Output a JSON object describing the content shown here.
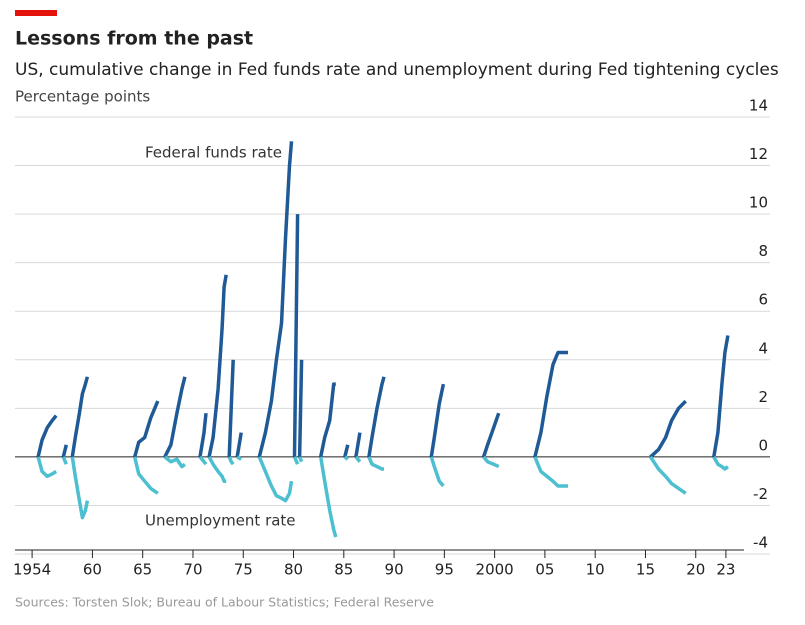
{
  "chart_data": {
    "type": "line",
    "title": "Lessons from the past",
    "subtitle": "US, cumulative change in Fed funds rate and unemployment during Fed tightening cycles",
    "y_label": "Percentage points",
    "source": "Sources: Torsten Slok; Bureau of Labour Statistics; Federal Reserve",
    "annotations": [
      "Federal funds rate",
      "Unemployment rate"
    ],
    "x": [
      1954.6,
      1955.0,
      1955.5,
      1956.0,
      1956.4,
      null,
      1957.1,
      1957.4,
      null,
      1958.0,
      1958.3,
      1958.7,
      1959.0,
      1959.3,
      1959.5,
      null,
      1964.2,
      1964.6,
      1965.2,
      1965.8,
      1966.5,
      null,
      1967.2,
      1967.8,
      1968.4,
      1968.9,
      1969.2,
      null,
      1970.7,
      1971.1,
      1971.3,
      null,
      1971.6,
      1972.0,
      1972.5,
      1972.9,
      1973.1,
      1973.3,
      null,
      1973.6,
      1973.8,
      1974.0,
      null,
      1974.4,
      1974.8,
      null,
      1976.6,
      1977.2,
      1977.8,
      1978.3,
      1978.8,
      1979.2,
      1979.6,
      1979.8,
      null,
      1980.1,
      1980.4,
      null,
      1980.6,
      1980.8,
      null,
      1982.7,
      1983.1,
      1983.6,
      1984.0,
      1984.2,
      null,
      1985.1,
      1985.4,
      null,
      1986.2,
      1986.6,
      null,
      1987.5,
      1987.8,
      1988.3,
      1988.8,
      1989.0,
      null,
      1993.7,
      1994.0,
      1994.5,
      1994.9,
      null,
      1998.9,
      1999.3,
      1999.9,
      2000.4,
      null,
      2004.0,
      2004.6,
      2005.2,
      2005.8,
      2006.3,
      2007.3,
      null,
      2015.5,
      2016.3,
      2017.0,
      2017.6,
      2018.3,
      2019.0,
      null,
      2021.8,
      2022.2,
      2022.6,
      2022.9,
      2023.2
    ],
    "series": [
      {
        "name": "Federal funds rate",
        "color": "#1f5a96",
        "values": [
          0,
          0.7,
          1.2,
          1.5,
          1.7,
          null,
          0,
          0.5,
          null,
          0,
          0.8,
          1.8,
          2.6,
          3.0,
          3.3,
          null,
          0,
          0.6,
          0.8,
          1.6,
          2.3,
          null,
          0,
          0.5,
          1.8,
          2.8,
          3.3,
          null,
          0,
          1.0,
          1.8,
          null,
          0,
          0.8,
          2.8,
          5.3,
          7.0,
          7.5,
          null,
          0,
          2.0,
          4.0,
          null,
          0,
          1.0,
          null,
          0,
          1.0,
          2.3,
          4.0,
          5.5,
          9.0,
          12.0,
          13.0,
          null,
          0,
          10.0,
          null,
          0,
          4.0,
          null,
          0,
          0.8,
          1.5,
          3.0,
          3.0,
          null,
          0,
          0.5,
          null,
          0,
          1.0,
          null,
          0,
          0.8,
          2.0,
          3.0,
          3.3,
          null,
          0,
          0.8,
          2.2,
          3.0,
          null,
          0,
          0.5,
          1.2,
          1.8,
          null,
          0,
          1.0,
          2.5,
          3.8,
          4.3,
          4.3,
          null,
          0,
          0.3,
          0.8,
          1.5,
          2.0,
          2.3,
          null,
          0,
          1.0,
          3.0,
          4.3,
          5.0
        ]
      },
      {
        "name": "Unemployment rate",
        "color": "#4cbfd0",
        "values": [
          0,
          -0.6,
          -0.8,
          -0.7,
          -0.6,
          null,
          0,
          -0.3,
          null,
          0,
          -0.8,
          -1.8,
          -2.5,
          -2.2,
          -1.8,
          null,
          0,
          -0.7,
          -1.0,
          -1.3,
          -1.5,
          null,
          0,
          -0.2,
          -0.1,
          -0.4,
          -0.3,
          null,
          0,
          -0.2,
          -0.3,
          null,
          0,
          -0.3,
          -0.6,
          -0.8,
          -1.0,
          -1.0,
          null,
          0,
          -0.2,
          -0.3,
          null,
          0,
          -0.1,
          null,
          0,
          -0.6,
          -1.2,
          -1.6,
          -1.7,
          -1.8,
          -1.5,
          -1.0,
          null,
          0,
          -0.3,
          null,
          0,
          -0.2,
          null,
          0,
          -1.0,
          -2.2,
          -3.0,
          -3.3,
          null,
          0,
          -0.1,
          null,
          0,
          -0.2,
          null,
          0,
          -0.3,
          -0.4,
          -0.5,
          -0.5,
          null,
          0,
          -0.4,
          -1.0,
          -1.2,
          null,
          0,
          -0.2,
          -0.3,
          -0.4,
          null,
          0,
          -0.6,
          -0.8,
          -1.0,
          -1.2,
          -1.2,
          null,
          0,
          -0.5,
          -0.8,
          -1.1,
          -1.3,
          -1.5,
          null,
          0,
          -0.3,
          -0.4,
          -0.5,
          -0.4
        ]
      }
    ],
    "xlim": [
      1952.3,
      2024.8
    ],
    "ylim": [
      -4,
      14
    ],
    "xticks": [
      {
        "value": 1954,
        "label": "1954"
      },
      {
        "value": 1960,
        "label": "60"
      },
      {
        "value": 1965,
        "label": "65"
      },
      {
        "value": 1970,
        "label": "70"
      },
      {
        "value": 1975,
        "label": "75"
      },
      {
        "value": 1980,
        "label": "80"
      },
      {
        "value": 1985,
        "label": "85"
      },
      {
        "value": 1990,
        "label": "90"
      },
      {
        "value": 1995,
        "label": "95"
      },
      {
        "value": 2000,
        "label": "2000"
      },
      {
        "value": 2005,
        "label": "05"
      },
      {
        "value": 2010,
        "label": "10"
      },
      {
        "value": 2015,
        "label": "15"
      },
      {
        "value": 2020,
        "label": "20"
      },
      {
        "value": 2023,
        "label": "23"
      }
    ],
    "yticks": [
      14,
      12,
      10,
      8,
      6,
      4,
      2,
      0,
      -2,
      -4
    ],
    "grid": true
  }
}
